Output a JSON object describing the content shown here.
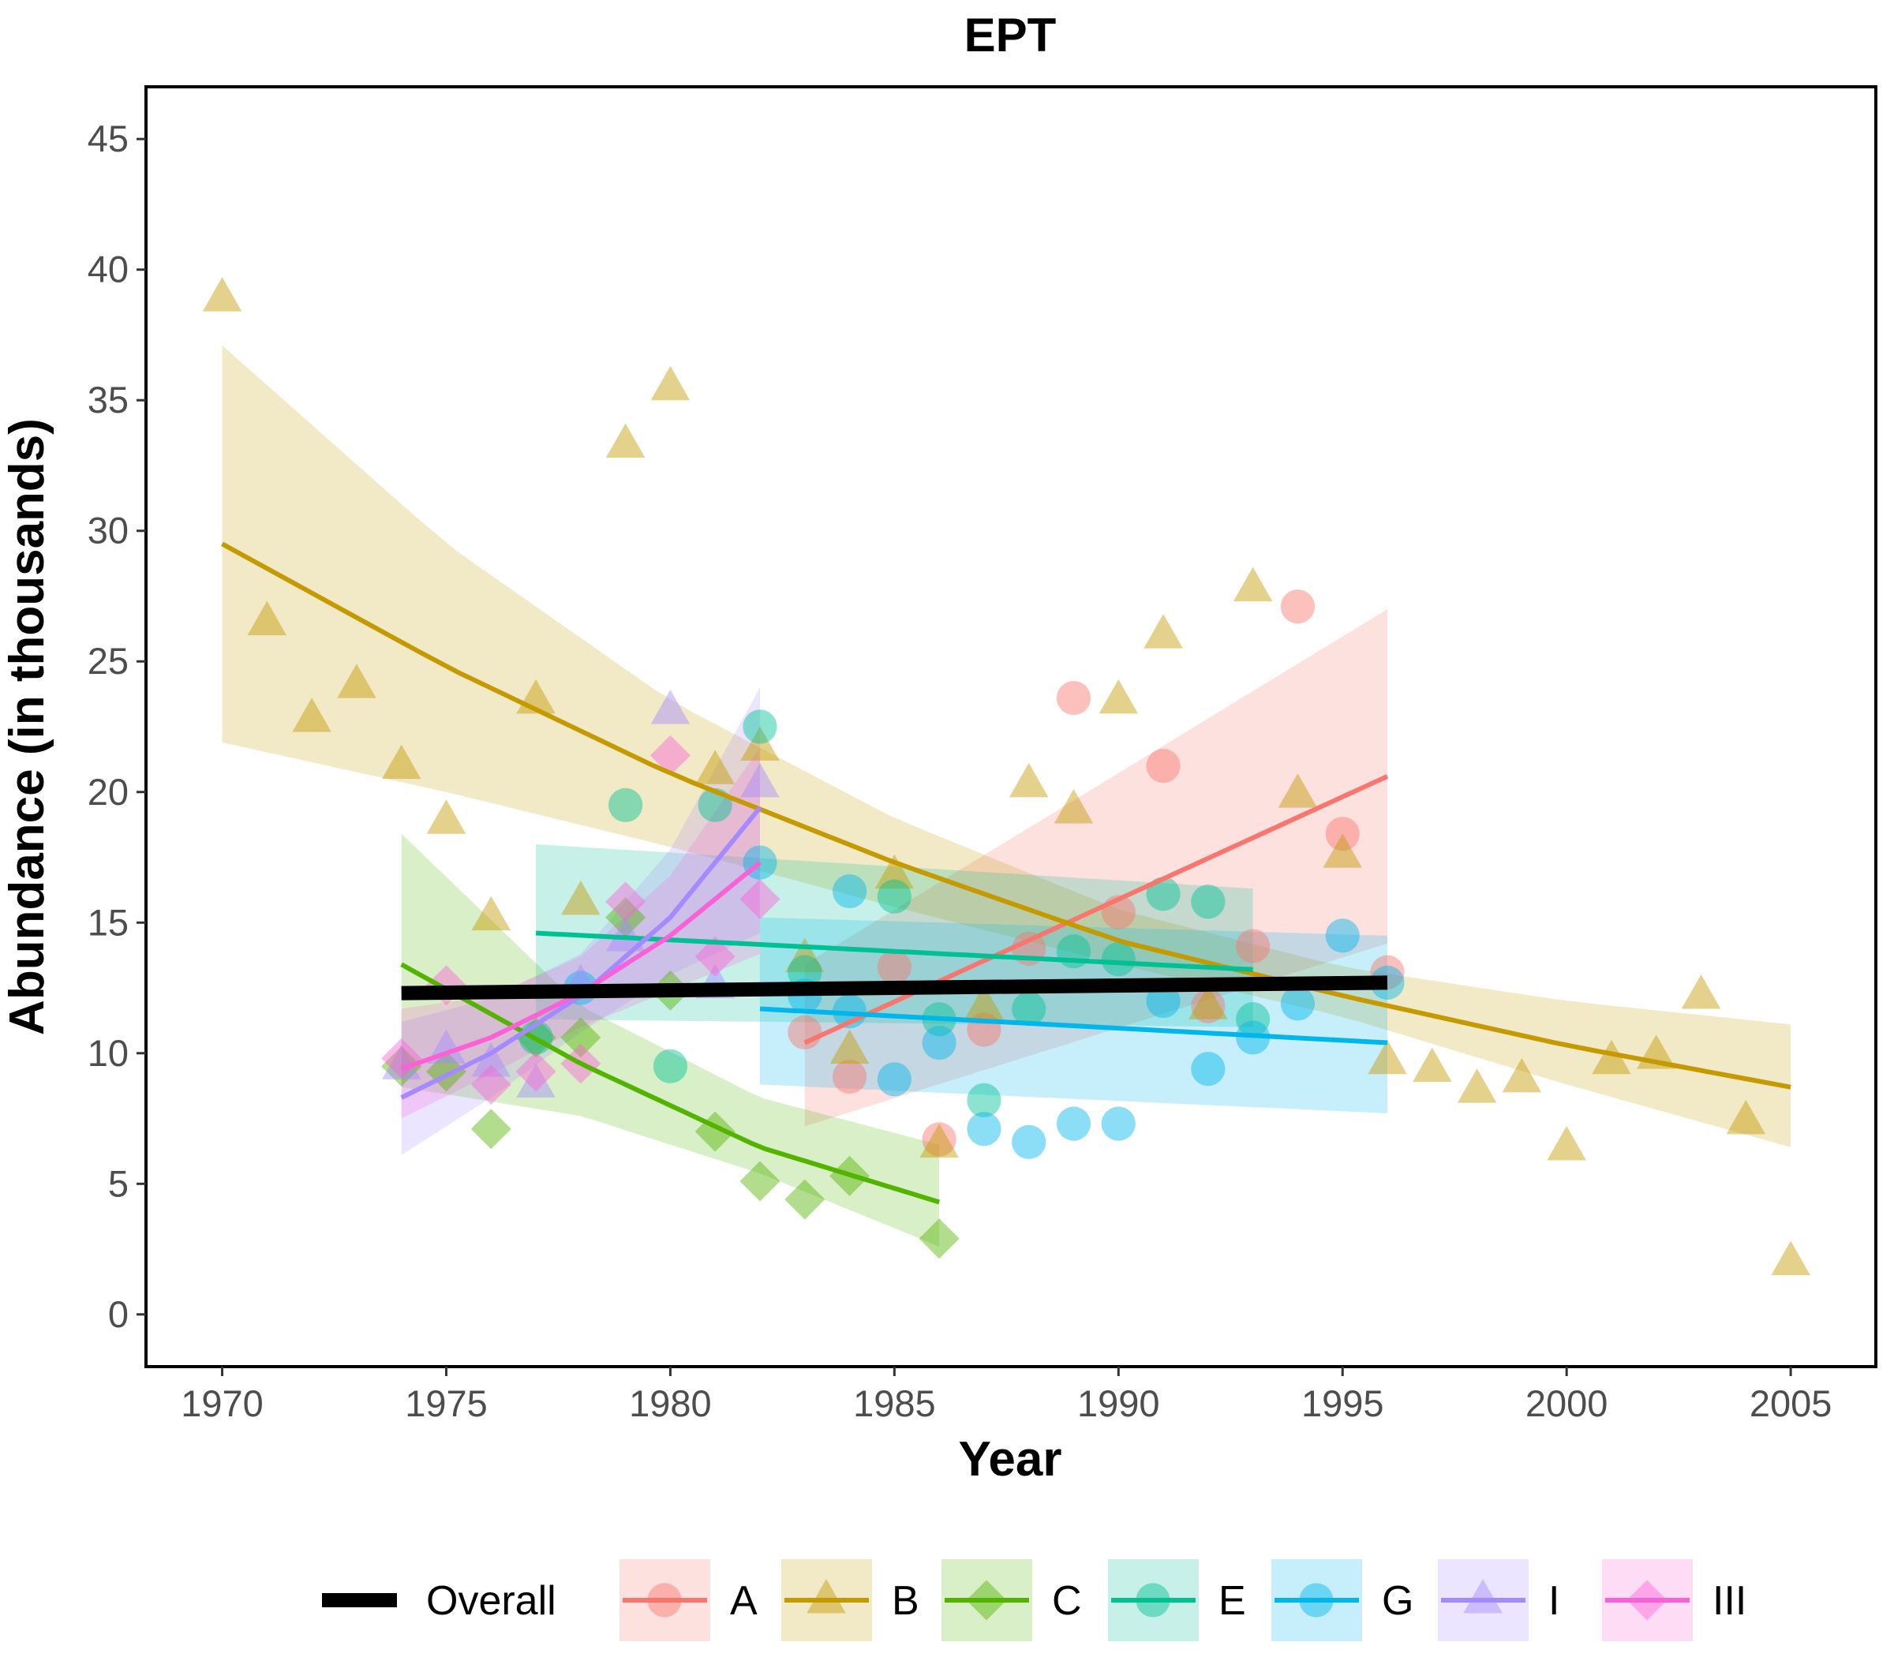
{
  "chart_data": {
    "type": "scatter",
    "title": "EPT",
    "xlabel": "Year",
    "ylabel": "Abundance (in thousands)",
    "xlim": [
      1968.3,
      2006.9
    ],
    "ylim": [
      -2.0,
      47.0
    ],
    "x_ticks": [
      1970,
      1975,
      1980,
      1985,
      1990,
      1995,
      2000,
      2005
    ],
    "y_ticks": [
      0,
      5,
      10,
      15,
      20,
      25,
      30,
      35,
      40,
      45
    ],
    "grid": false,
    "legend_position": "bottom",
    "overall": {
      "name": "Overall",
      "color": "#000000",
      "x": [
        1974,
        1996
      ],
      "y": [
        12.3,
        12.7
      ]
    },
    "series": [
      {
        "name": "A",
        "color": "#F8766D",
        "marker": "circle",
        "points": [
          [
            1983,
            10.8
          ],
          [
            1984,
            9.1
          ],
          [
            1985,
            13.3
          ],
          [
            1986,
            6.7
          ],
          [
            1987,
            10.9
          ],
          [
            1988,
            14.0
          ],
          [
            1989,
            23.6
          ],
          [
            1990,
            15.4
          ],
          [
            1991,
            21.0
          ],
          [
            1992,
            11.8
          ],
          [
            1993,
            14.1
          ],
          [
            1994,
            27.1
          ],
          [
            1995,
            18.4
          ],
          [
            1996,
            13.1
          ]
        ],
        "fit_x": [
          1983,
          1996
        ],
        "fit_y": [
          10.4,
          20.6
        ],
        "band_lower": [
          7.2,
          14.2
        ],
        "band_upper": [
          13.4,
          27.0
        ]
      },
      {
        "name": "B",
        "color": "#C49A00",
        "marker": "triangle",
        "points": [
          [
            1970,
            38.9
          ],
          [
            1971,
            26.5
          ],
          [
            1972,
            22.8
          ],
          [
            1973,
            24.1
          ],
          [
            1974,
            21.0
          ],
          [
            1975,
            18.9
          ],
          [
            1976,
            15.2
          ],
          [
            1977,
            23.5
          ],
          [
            1978,
            15.8
          ],
          [
            1979,
            33.3
          ],
          [
            1980,
            35.5
          ],
          [
            1981,
            20.8
          ],
          [
            1982,
            21.7
          ],
          [
            1983,
            13.6
          ],
          [
            1984,
            10.1
          ],
          [
            1985,
            16.8
          ],
          [
            1986,
            6.5
          ],
          [
            1987,
            11.8
          ],
          [
            1988,
            20.3
          ],
          [
            1989,
            19.3
          ],
          [
            1990,
            23.5
          ],
          [
            1991,
            26.0
          ],
          [
            1992,
            11.8
          ],
          [
            1993,
            27.8
          ],
          [
            1994,
            19.9
          ],
          [
            1995,
            17.6
          ],
          [
            1996,
            9.7
          ],
          [
            1997,
            9.4
          ],
          [
            1998,
            8.6
          ],
          [
            1999,
            9.0
          ],
          [
            2000,
            6.4
          ],
          [
            2001,
            9.7
          ],
          [
            2002,
            9.9
          ],
          [
            2003,
            12.2
          ],
          [
            2004,
            7.4
          ],
          [
            2005,
            2.0
          ]
        ],
        "fit_x": [
          1970,
          1975,
          1980,
          1985,
          1990,
          1995,
          2000,
          2005
        ],
        "fit_y": [
          29.5,
          24.8,
          20.7,
          17.3,
          14.3,
          12.2,
          10.3,
          8.7
        ],
        "band_lower": [
          21.9,
          20.0,
          17.9,
          15.6,
          13.4,
          11.4,
          8.8,
          6.4
        ],
        "band_upper": [
          37.1,
          29.5,
          23.5,
          19.0,
          15.5,
          13.3,
          12.0,
          11.1
        ]
      },
      {
        "name": "C",
        "color": "#53B400",
        "marker": "diamond",
        "points": [
          [
            1974,
            9.5
          ],
          [
            1975,
            9.3
          ],
          [
            1976,
            7.1
          ],
          [
            1977,
            10.6
          ],
          [
            1978,
            10.6
          ],
          [
            1979,
            15.2
          ],
          [
            1980,
            12.4
          ],
          [
            1981,
            7.0
          ],
          [
            1982,
            5.1
          ],
          [
            1983,
            4.4
          ],
          [
            1984,
            5.3
          ],
          [
            1986,
            2.9
          ]
        ],
        "fit_x": [
          1974,
          1978,
          1982,
          1986
        ],
        "fit_y": [
          13.4,
          9.6,
          6.4,
          4.3
        ],
        "band_lower": [
          8.7,
          7.6,
          5.4,
          2.6
        ],
        "band_upper": [
          18.4,
          11.8,
          8.3,
          6.5
        ]
      },
      {
        "name": "E",
        "color": "#00C094",
        "marker": "circle",
        "points": [
          [
            1977,
            10.6
          ],
          [
            1979,
            19.5
          ],
          [
            1980,
            9.5
          ],
          [
            1981,
            19.5
          ],
          [
            1982,
            22.5
          ],
          [
            1983,
            13.1
          ],
          [
            1985,
            16.0
          ],
          [
            1986,
            11.3
          ],
          [
            1987,
            8.2
          ],
          [
            1988,
            11.7
          ],
          [
            1989,
            13.9
          ],
          [
            1990,
            13.6
          ],
          [
            1991,
            16.1
          ],
          [
            1992,
            15.8
          ],
          [
            1993,
            11.3
          ]
        ],
        "fit_x": [
          1977,
          1993
        ],
        "fit_y": [
          14.6,
          13.2
        ],
        "band_lower": [
          11.3,
          11.0
        ],
        "band_upper": [
          18.0,
          16.3
        ]
      },
      {
        "name": "G",
        "color": "#00B6EB",
        "marker": "circle",
        "points": [
          [
            1978,
            12.5
          ],
          [
            1982,
            17.3
          ],
          [
            1983,
            12.2
          ],
          [
            1984,
            16.2
          ],
          [
            1984,
            11.6
          ],
          [
            1985,
            9.0
          ],
          [
            1986,
            10.4
          ],
          [
            1987,
            7.1
          ],
          [
            1988,
            6.6
          ],
          [
            1989,
            7.3
          ],
          [
            1990,
            7.3
          ],
          [
            1991,
            12.0
          ],
          [
            1992,
            9.4
          ],
          [
            1993,
            10.6
          ],
          [
            1994,
            11.9
          ],
          [
            1995,
            14.5
          ],
          [
            1996,
            12.7
          ]
        ],
        "fit_x": [
          1982,
          1996
        ],
        "fit_y": [
          11.7,
          10.4
        ],
        "band_lower": [
          8.8,
          7.7
        ],
        "band_upper": [
          15.2,
          14.5
        ]
      },
      {
        "name": "I",
        "color": "#A58AFF",
        "marker": "triangle",
        "points": [
          [
            1974,
            9.5
          ],
          [
            1975,
            10.1
          ],
          [
            1976,
            9.6
          ],
          [
            1977,
            8.8
          ],
          [
            1978,
            12.6
          ],
          [
            1979,
            14.4
          ],
          [
            1980,
            23.1
          ],
          [
            1981,
            12.6
          ],
          [
            1982,
            20.3
          ]
        ],
        "fit_x": [
          1974,
          1976,
          1978,
          1980,
          1982
        ],
        "fit_y": [
          8.3,
          10.0,
          12.2,
          15.2,
          19.4
        ],
        "band_lower": [
          6.1,
          8.3,
          10.8,
          13.0,
          14.6
        ],
        "band_upper": [
          11.2,
          12.1,
          13.8,
          17.8,
          24.0
        ]
      },
      {
        "name": "III",
        "color": "#FB61D7",
        "marker": "diamond",
        "points": [
          [
            1974,
            9.8
          ],
          [
            1975,
            12.6
          ],
          [
            1976,
            8.8
          ],
          [
            1977,
            9.3
          ],
          [
            1978,
            9.6
          ],
          [
            1979,
            15.8
          ],
          [
            1980,
            21.4
          ],
          [
            1981,
            13.7
          ],
          [
            1982,
            15.9
          ]
        ],
        "fit_x": [
          1974,
          1976,
          1978,
          1980,
          1982
        ],
        "fit_y": [
          9.4,
          10.6,
          12.3,
          14.5,
          17.3
        ],
        "band_lower": [
          7.5,
          9.2,
          11.0,
          12.4,
          13.8
        ],
        "band_upper": [
          11.7,
          12.2,
          13.7,
          16.8,
          21.7
        ]
      }
    ]
  }
}
